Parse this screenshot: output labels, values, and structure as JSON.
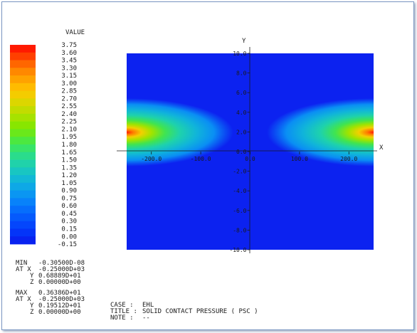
{
  "chart_data": {
    "type": "heatmap",
    "title": "SOLID CONTACT PRESSURE ( PSC )",
    "xlabel": "X",
    "ylabel": "Y",
    "xlim": [
      -250,
      250
    ],
    "ylim": [
      -10,
      10
    ],
    "x_ticks": [
      "-200.0",
      "-100.0",
      "0.0",
      "100.0",
      "200.0"
    ],
    "x_tick_values": [
      -200,
      -100,
      0,
      100,
      200
    ],
    "y_ticks": [
      "10.0",
      "8.0",
      "6.0",
      "4.0",
      "2.0",
      "0.0",
      "-2.0",
      "-4.0",
      "-6.0",
      "-8.0",
      "-10.0"
    ],
    "y_tick_values": [
      10,
      8,
      6,
      4,
      2,
      0,
      -2,
      -4,
      -6,
      -8,
      -10
    ],
    "background_value": 0.0,
    "peaks": [
      {
        "x": -250,
        "y": 1.95,
        "value": 3.6386
      },
      {
        "x": 250,
        "y": 1.95,
        "value": 3.6386
      }
    ],
    "legend": {
      "title": "VALUE",
      "levels": [
        "3.75",
        "3.60",
        "3.45",
        "3.30",
        "3.15",
        "3.00",
        "2.85",
        "2.70",
        "2.55",
        "2.40",
        "2.25",
        "2.10",
        "1.95",
        "1.80",
        "1.65",
        "1.50",
        "1.35",
        "1.20",
        "1.05",
        "0.90",
        "0.75",
        "0.60",
        "0.45",
        "0.30",
        "0.15",
        "0.00",
        "-0.15"
      ],
      "colors": [
        "#ff1a00",
        "#ff4000",
        "#ff6600",
        "#ff8800",
        "#ffa200",
        "#ffbb00",
        "#f4cc00",
        "#dcd600",
        "#c2dc00",
        "#a6e200",
        "#88e600",
        "#6ae81a",
        "#4ce840",
        "#38e468",
        "#2adc8c",
        "#20d2aa",
        "#18c6c2",
        "#12b8d6",
        "#0ea8e6",
        "#0a96f2",
        "#0882fa",
        "#066efc",
        "#055afc",
        "#0446fc",
        "#0434f8",
        "#0822f0"
      ]
    }
  },
  "stats": {
    "min": {
      "label": "MIN",
      "value": "-0.30500D-08",
      "at_label": "AT X",
      "x": "-0.25000D+03",
      "y_label": "Y",
      "y": "0.68889D+01",
      "z_label": "Z",
      "z": "0.00000D+00"
    },
    "max": {
      "label": "MAX",
      "value": "0.36386D+01",
      "at_label": "AT X",
      "x": "-0.25000D+03",
      "y_label": "Y",
      "y": "0.19512D+01",
      "z_label": "Z",
      "z": "0.00000D+00"
    }
  },
  "info": {
    "case_label": "CASE :",
    "case_value": "EHL",
    "title_label": "TITLE :",
    "title_value": "SOLID CONTACT PRESSURE ( PSC )",
    "note_label": "NOTE :",
    "note_value": "--"
  }
}
